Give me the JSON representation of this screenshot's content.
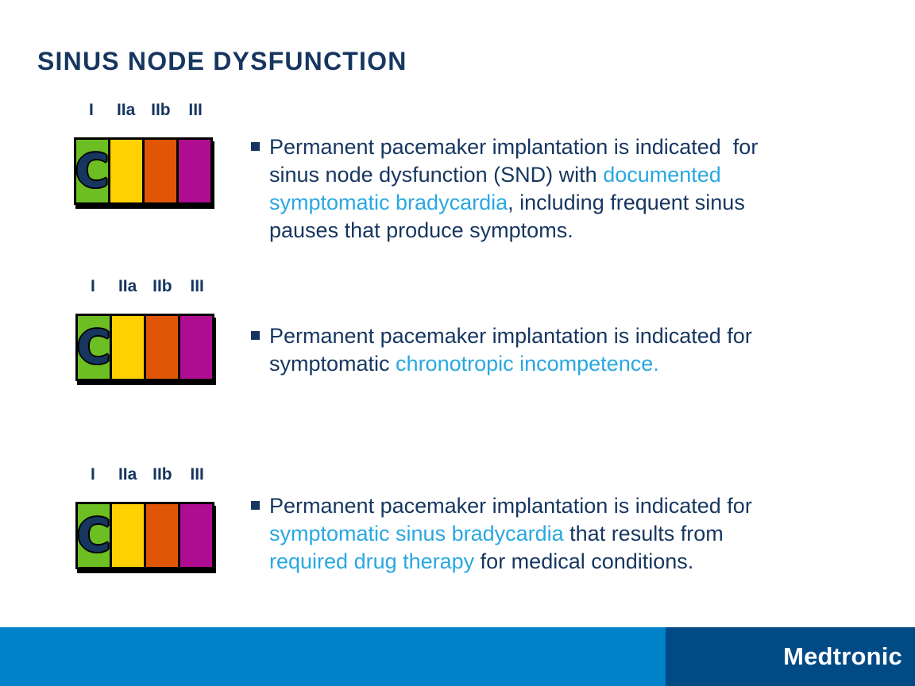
{
  "title": "SINUS NODE DYSFUNCTION",
  "colors": {
    "navy": "#16365F",
    "cyan": "#29A8E0",
    "green": "#6CBE23",
    "yellow": "#FFD103",
    "orange": "#E05506",
    "magenta": "#AF0D91",
    "bar": "#0082C8",
    "brandbox": "#004A86"
  },
  "indicators": [
    {
      "labels": [
        "I",
        "IIa",
        "IIb",
        "III"
      ],
      "letter": "C",
      "class_shown": "I"
    },
    {
      "labels": [
        "I",
        "IIa",
        "IIb",
        "III"
      ],
      "letter": "C",
      "class_shown": "I"
    },
    {
      "labels": [
        "I",
        "IIa",
        "IIb",
        "III"
      ],
      "letter": "C",
      "class_shown": "I"
    }
  ],
  "bullets": [
    {
      "segments": [
        {
          "t": "Permanent pacemaker implantation is indicated  for\nsinus node dysfunction (SND) with ",
          "c": "navy"
        },
        {
          "t": "documented\nsymptomatic bradycardia",
          "c": "cyan"
        },
        {
          "t": ", including frequent sinus\npauses that produce symptoms.",
          "c": "navy"
        }
      ]
    },
    {
      "segments": [
        {
          "t": "Permanent pacemaker implantation is indicated for\nsymptomatic ",
          "c": "navy"
        },
        {
          "t": "chronotropic incompetence.",
          "c": "cyan"
        }
      ]
    },
    {
      "segments": [
        {
          "t": "Permanent pacemaker implantation is indicated for\n",
          "c": "navy"
        },
        {
          "t": "symptomatic sinus bradycardia",
          "c": "cyan"
        },
        {
          "t": " that results from\n",
          "c": "navy"
        },
        {
          "t": "required drug therapy",
          "c": "cyan"
        },
        {
          "t": " for medical conditions.",
          "c": "navy"
        }
      ]
    }
  ],
  "footer": {
    "brand": "Medtronic"
  }
}
